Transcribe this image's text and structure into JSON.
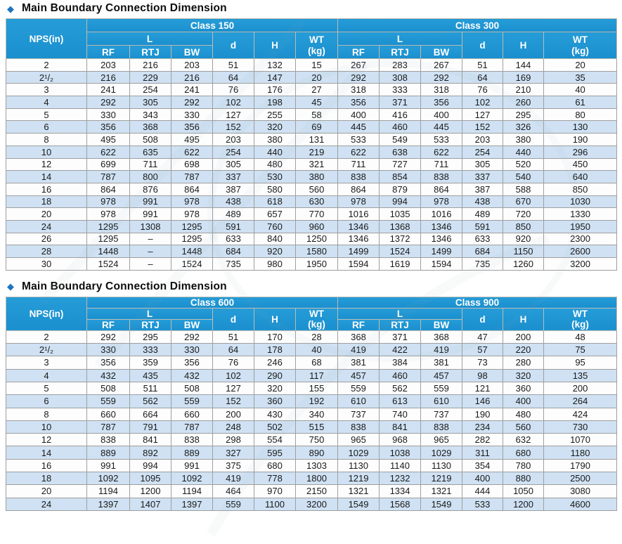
{
  "icons": {
    "diamond": "◆"
  },
  "colors": {
    "header_blue": "#2095d3",
    "stripe_blue": "#cfe1f3",
    "bullet_blue": "#1d74c2",
    "text_dark": "#1a1a1a"
  },
  "tables": [
    {
      "title": "Main Boundary Connection Dimension",
      "classes": [
        "Class 150",
        "Class 300"
      ],
      "headers": {
        "nps": "NPS(in)",
        "l": "L",
        "rf": "RF",
        "rtj": "RTJ",
        "bw": "BW",
        "d": "d",
        "h": "H",
        "wt": "WT\n(kg)"
      },
      "rows": [
        {
          "nps": "2",
          "c1": [
            "203",
            "216",
            "203",
            "51",
            "132",
            "15"
          ],
          "c2": [
            "267",
            "283",
            "267",
            "51",
            "144",
            "20"
          ]
        },
        {
          "nps": "2¹/₂",
          "c1": [
            "216",
            "229",
            "216",
            "64",
            "147",
            "20"
          ],
          "c2": [
            "292",
            "308",
            "292",
            "64",
            "169",
            "35"
          ]
        },
        {
          "nps": "3",
          "c1": [
            "241",
            "254",
            "241",
            "76",
            "176",
            "27"
          ],
          "c2": [
            "318",
            "333",
            "318",
            "76",
            "210",
            "40"
          ]
        },
        {
          "nps": "4",
          "c1": [
            "292",
            "305",
            "292",
            "102",
            "198",
            "45"
          ],
          "c2": [
            "356",
            "371",
            "356",
            "102",
            "260",
            "61"
          ]
        },
        {
          "nps": "5",
          "c1": [
            "330",
            "343",
            "330",
            "127",
            "255",
            "58"
          ],
          "c2": [
            "400",
            "416",
            "400",
            "127",
            "295",
            "80"
          ]
        },
        {
          "nps": "6",
          "c1": [
            "356",
            "368",
            "356",
            "152",
            "320",
            "69"
          ],
          "c2": [
            "445",
            "460",
            "445",
            "152",
            "326",
            "130"
          ]
        },
        {
          "nps": "8",
          "c1": [
            "495",
            "508",
            "495",
            "203",
            "380",
            "131"
          ],
          "c2": [
            "533",
            "549",
            "533",
            "203",
            "380",
            "190"
          ]
        },
        {
          "nps": "10",
          "c1": [
            "622",
            "635",
            "622",
            "254",
            "440",
            "219"
          ],
          "c2": [
            "622",
            "638",
            "622",
            "254",
            "440",
            "296"
          ]
        },
        {
          "nps": "12",
          "c1": [
            "699",
            "711",
            "698",
            "305",
            "480",
            "321"
          ],
          "c2": [
            "711",
            "727",
            "711",
            "305",
            "520",
            "450"
          ]
        },
        {
          "nps": "14",
          "c1": [
            "787",
            "800",
            "787",
            "337",
            "530",
            "380"
          ],
          "c2": [
            "838",
            "854",
            "838",
            "337",
            "540",
            "640"
          ]
        },
        {
          "nps": "16",
          "c1": [
            "864",
            "876",
            "864",
            "387",
            "580",
            "560"
          ],
          "c2": [
            "864",
            "879",
            "864",
            "387",
            "588",
            "850"
          ]
        },
        {
          "nps": "18",
          "c1": [
            "978",
            "991",
            "978",
            "438",
            "618",
            "630"
          ],
          "c2": [
            "978",
            "994",
            "978",
            "438",
            "670",
            "1030"
          ]
        },
        {
          "nps": "20",
          "c1": [
            "978",
            "991",
            "978",
            "489",
            "657",
            "770"
          ],
          "c2": [
            "1016",
            "1035",
            "1016",
            "489",
            "720",
            "1330"
          ]
        },
        {
          "nps": "24",
          "c1": [
            "1295",
            "1308",
            "1295",
            "591",
            "760",
            "960"
          ],
          "c2": [
            "1346",
            "1368",
            "1346",
            "591",
            "850",
            "1950"
          ]
        },
        {
          "nps": "26",
          "c1": [
            "1295",
            "–",
            "1295",
            "633",
            "840",
            "1250"
          ],
          "c2": [
            "1346",
            "1372",
            "1346",
            "633",
            "920",
            "2300"
          ]
        },
        {
          "nps": "28",
          "c1": [
            "1448",
            "–",
            "1448",
            "684",
            "920",
            "1580"
          ],
          "c2": [
            "1499",
            "1524",
            "1499",
            "684",
            "1150",
            "2600"
          ]
        },
        {
          "nps": "30",
          "c1": [
            "1524",
            "–",
            "1524",
            "735",
            "980",
            "1950"
          ],
          "c2": [
            "1594",
            "1619",
            "1594",
            "735",
            "1260",
            "3200"
          ]
        }
      ]
    },
    {
      "title": "Main Boundary Connection Dimension",
      "classes": [
        "Class 600",
        "Class 900"
      ],
      "headers": {
        "nps": "NPS(in)",
        "l": "L",
        "rf": "RF",
        "rtj": "RTJ",
        "bw": "BW",
        "d": "d",
        "h": "H",
        "wt": "WT\n(kg)"
      },
      "rows": [
        {
          "nps": "2",
          "c1": [
            "292",
            "295",
            "292",
            "51",
            "170",
            "28"
          ],
          "c2": [
            "368",
            "371",
            "368",
            "47",
            "200",
            "48"
          ]
        },
        {
          "nps": "2¹/₂",
          "c1": [
            "330",
            "333",
            "330",
            "64",
            "178",
            "40"
          ],
          "c2": [
            "419",
            "422",
            "419",
            "57",
            "220",
            "75"
          ]
        },
        {
          "nps": "3",
          "c1": [
            "356",
            "359",
            "356",
            "76",
            "246",
            "68"
          ],
          "c2": [
            "381",
            "384",
            "381",
            "73",
            "280",
            "95"
          ]
        },
        {
          "nps": "4",
          "c1": [
            "432",
            "435",
            "432",
            "102",
            "290",
            "117"
          ],
          "c2": [
            "457",
            "460",
            "457",
            "98",
            "320",
            "135"
          ]
        },
        {
          "nps": "5",
          "c1": [
            "508",
            "511",
            "508",
            "127",
            "320",
            "155"
          ],
          "c2": [
            "559",
            "562",
            "559",
            "121",
            "360",
            "200"
          ]
        },
        {
          "nps": "6",
          "c1": [
            "559",
            "562",
            "559",
            "152",
            "360",
            "192"
          ],
          "c2": [
            "610",
            "613",
            "610",
            "146",
            "400",
            "264"
          ]
        },
        {
          "nps": "8",
          "c1": [
            "660",
            "664",
            "660",
            "200",
            "430",
            "340"
          ],
          "c2": [
            "737",
            "740",
            "737",
            "190",
            "480",
            "424"
          ]
        },
        {
          "nps": "10",
          "c1": [
            "787",
            "791",
            "787",
            "248",
            "502",
            "515"
          ],
          "c2": [
            "838",
            "841",
            "838",
            "234",
            "560",
            "730"
          ]
        },
        {
          "nps": "12",
          "c1": [
            "838",
            "841",
            "838",
            "298",
            "554",
            "750"
          ],
          "c2": [
            "965",
            "968",
            "965",
            "282",
            "632",
            "1070"
          ]
        },
        {
          "nps": "14",
          "c1": [
            "889",
            "892",
            "889",
            "327",
            "595",
            "890"
          ],
          "c2": [
            "1029",
            "1038",
            "1029",
            "311",
            "680",
            "1180"
          ]
        },
        {
          "nps": "16",
          "c1": [
            "991",
            "994",
            "991",
            "375",
            "680",
            "1303"
          ],
          "c2": [
            "1130",
            "1140",
            "1130",
            "354",
            "780",
            "1790"
          ]
        },
        {
          "nps": "18",
          "c1": [
            "1092",
            "1095",
            "1092",
            "419",
            "778",
            "1800"
          ],
          "c2": [
            "1219",
            "1232",
            "1219",
            "400",
            "880",
            "2500"
          ]
        },
        {
          "nps": "20",
          "c1": [
            "1194",
            "1200",
            "1194",
            "464",
            "970",
            "2150"
          ],
          "c2": [
            "1321",
            "1334",
            "1321",
            "444",
            "1050",
            "3080"
          ]
        },
        {
          "nps": "24",
          "c1": [
            "1397",
            "1407",
            "1397",
            "559",
            "1100",
            "3200"
          ],
          "c2": [
            "1549",
            "1568",
            "1549",
            "533",
            "1200",
            "4600"
          ]
        }
      ]
    }
  ]
}
